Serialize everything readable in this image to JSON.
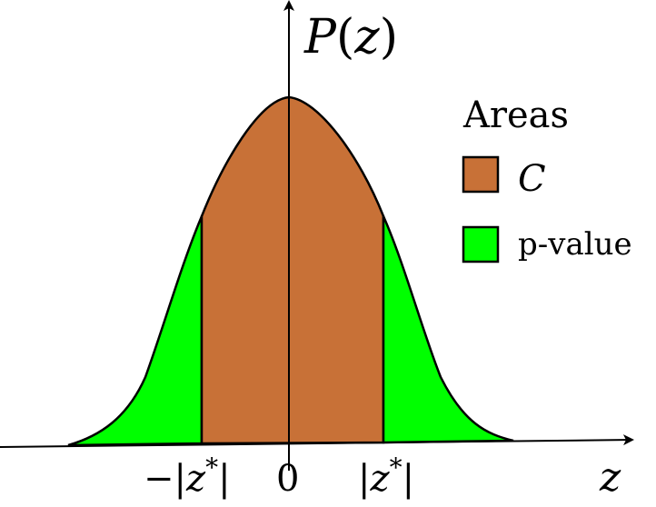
{
  "axes": {
    "y_label": {
      "name": "P",
      "open": "(",
      "var": "z",
      "close": ")"
    },
    "x_label": "z"
  },
  "ticks": {
    "neg": {
      "sign": "−",
      "bar": "|",
      "var": "z",
      "sup": "*"
    },
    "zero": "0",
    "pos": {
      "bar": "|",
      "var": "z",
      "sup": "*"
    }
  },
  "legend": {
    "title": "Areas",
    "items": [
      {
        "label": "C",
        "italic": true,
        "color": "#c87137"
      },
      {
        "label": "p-value",
        "italic": false,
        "color": "#00ff00"
      }
    ]
  },
  "colors": {
    "confidence_area": "#c87137",
    "p_value_area": "#00ff00",
    "stroke": "#000000"
  }
}
